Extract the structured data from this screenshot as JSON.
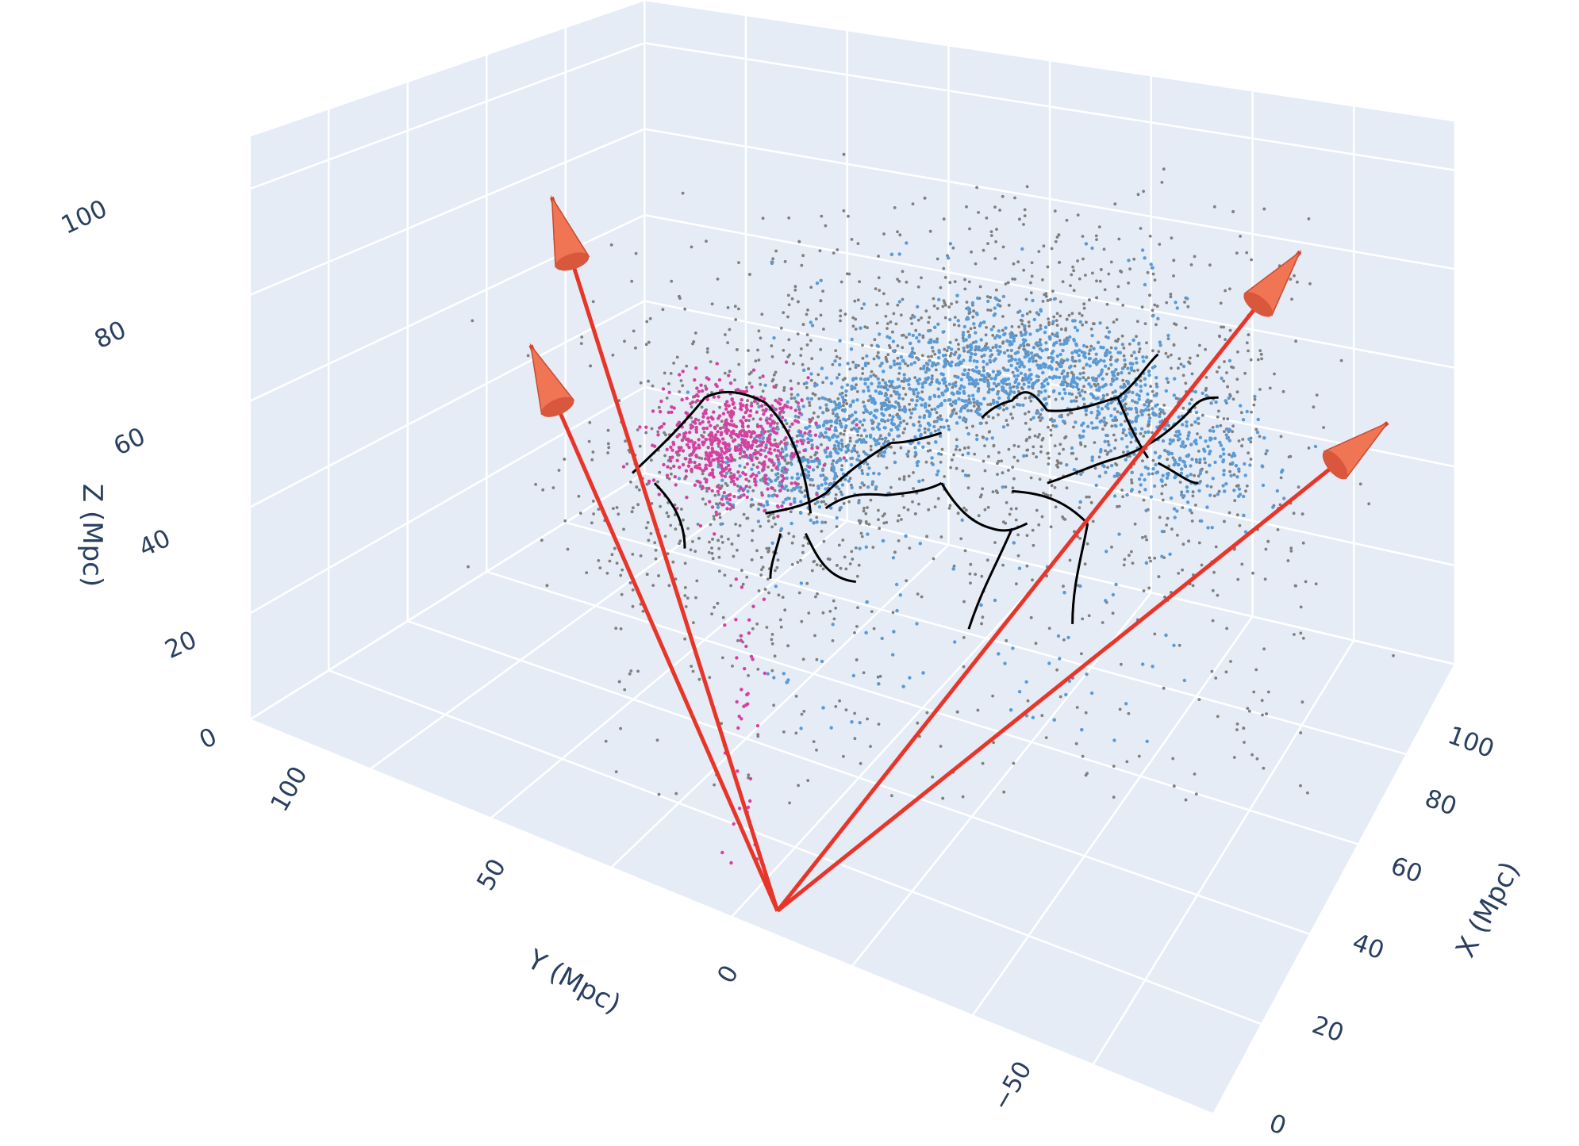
{
  "chart_data": {
    "type": "scatter3d",
    "title": "",
    "axes": {
      "x": {
        "label": "X (Mpc)",
        "range": [
          0,
          100
        ],
        "ticks": [
          0,
          20,
          40,
          60,
          80,
          100
        ],
        "tick_labels": [
          "0",
          "20",
          "40",
          "60",
          "80",
          "100"
        ]
      },
      "y": {
        "label": "Y (Mpc)",
        "range": [
          -75,
          125
        ],
        "ticks": [
          -50,
          0,
          50,
          100
        ],
        "tick_labels": [
          "−50",
          "0",
          "50",
          "100"
        ]
      },
      "z": {
        "label": "Z (Mpc)",
        "range": [
          0,
          110
        ],
        "ticks": [
          0,
          20,
          40,
          60,
          80,
          100
        ],
        "tick_labels": [
          "0",
          "20",
          "40",
          "60",
          "80",
          "100"
        ]
      }
    },
    "grid": true,
    "background_color": "#e5ecf6",
    "series": [
      {
        "kind": "points",
        "color": "#7f7f7f",
        "approx_count": 2400
      },
      {
        "kind": "points",
        "color": "#5b9bd5",
        "approx_count": 2000
      },
      {
        "kind": "points",
        "color": "#d6409f",
        "approx_count": 650
      },
      {
        "kind": "filaments",
        "color": "#000000"
      },
      {
        "kind": "vectors",
        "color": "#e8352a",
        "cone_color": "#ef7555",
        "count": 4
      }
    ],
    "colors": {
      "grid": "#ffffff",
      "axis_text": "#2a3f5f",
      "pane": "#e5ecf6"
    }
  }
}
